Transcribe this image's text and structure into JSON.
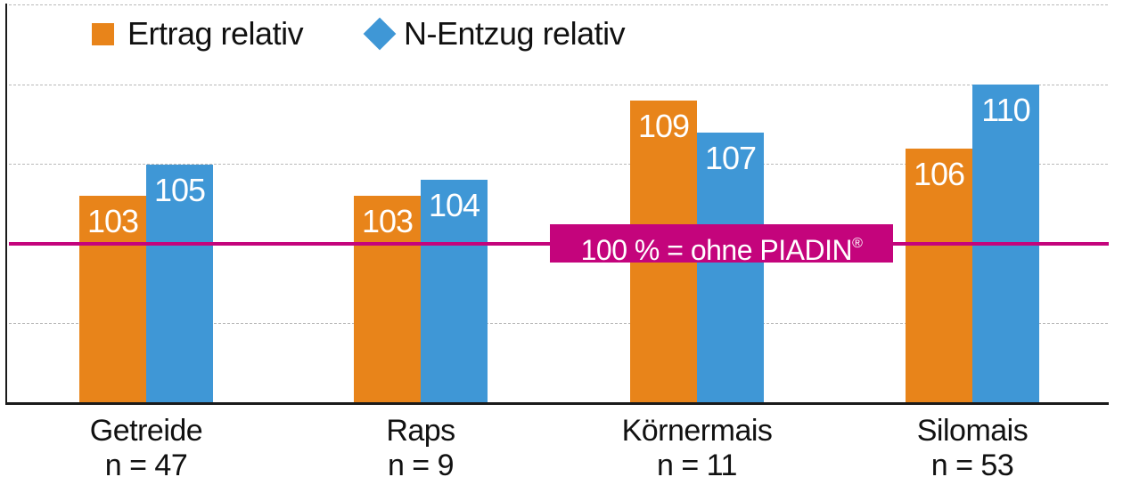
{
  "colors": {
    "ertrag": "#e8841a",
    "n_entzug": "#3f97d6",
    "reference": "#c4047c",
    "axis": "#1a1a1a",
    "grid": "#b9b9b9"
  },
  "legend": [
    {
      "label": "Ertrag relativ",
      "marker": "square",
      "color": "#e8841a"
    },
    {
      "label": "N-Entzug relativ",
      "marker": "diamond",
      "color": "#3f97d6"
    }
  ],
  "reference": {
    "value": 100,
    "label": "100 % = ohne PIADIN",
    "mark": "®"
  },
  "categories": [
    {
      "name": "Getreide",
      "n": "n = 47",
      "ertrag": 103,
      "n_entzug": 105
    },
    {
      "name": "Raps",
      "n": "n = 9",
      "ertrag": 103,
      "n_entzug": 104
    },
    {
      "name": "Körnermais",
      "n": "n = 11",
      "ertrag": 109,
      "n_entzug": 107
    },
    {
      "name": "Silomais",
      "n": "n = 53",
      "ertrag": 106,
      "n_entzug": 110
    }
  ],
  "chart_data": {
    "type": "bar",
    "title": "",
    "xlabel": "",
    "ylabel": "",
    "categories": [
      "Getreide\nn = 47",
      "Raps\nn = 9",
      "Körnermais\nn = 11",
      "Silomais\nn = 53"
    ],
    "series": [
      {
        "name": "Ertrag relativ",
        "color": "#e8841a",
        "values": [
          103,
          103,
          109,
          106
        ]
      },
      {
        "name": "N-Entzug relativ",
        "color": "#3f97d6",
        "values": [
          105,
          104,
          107,
          110
        ]
      }
    ],
    "ylim": [
      90,
      115
    ],
    "yticks": [
      90,
      95,
      100,
      105,
      110,
      115
    ],
    "ytick_labels_shown": false,
    "grid": {
      "y": true,
      "style": "dashed"
    },
    "reference_line": {
      "y": 100,
      "label": "100 % = ohne PIADIN®",
      "color": "#c4047c"
    },
    "data_labels": true,
    "legend_position": "top-left"
  }
}
